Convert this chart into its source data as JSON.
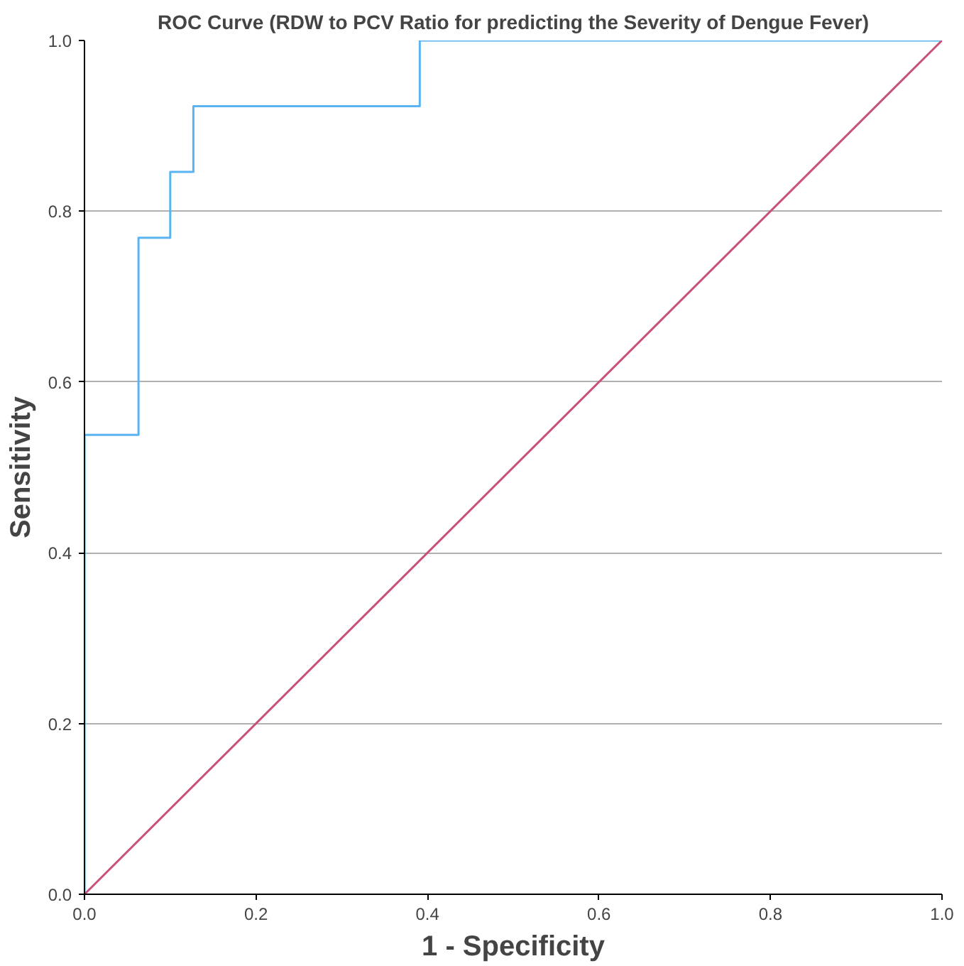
{
  "chart_data": {
    "type": "step",
    "title": "ROC Curve (RDW to PCV Ratio for predicting the Severity of Dengue Fever)",
    "xlabel": "1 - Specificity",
    "ylabel": "Sensitivity",
    "xlim": [
      0,
      1
    ],
    "ylim": [
      0,
      1
    ],
    "xticks": [
      {
        "value": 0,
        "label": "0.0"
      },
      {
        "value": 0.2,
        "label": "0.2"
      },
      {
        "value": 0.4,
        "label": "0.4"
      },
      {
        "value": 0.6,
        "label": "0.6"
      },
      {
        "value": 0.8,
        "label": "0.8"
      },
      {
        "value": 1,
        "label": "1.0"
      }
    ],
    "yticks": [
      {
        "value": 0,
        "label": "0.0"
      },
      {
        "value": 0.2,
        "label": "0.2"
      },
      {
        "value": 0.4,
        "label": "0.4"
      },
      {
        "value": 0.6,
        "label": "0.6"
      },
      {
        "value": 0.8,
        "label": "0.8"
      },
      {
        "value": 1,
        "label": "1.0"
      }
    ],
    "grid": "y",
    "series": [
      {
        "color": "#59b4f0",
        "x": [
          0,
          0,
          0.063,
          0.1,
          0.127,
          0.391,
          1
        ],
        "values": [
          0,
          0.538,
          0.769,
          0.846,
          0.923,
          1,
          1
        ]
      },
      {
        "type": "line",
        "color": "#c8507a",
        "x": [
          0,
          1
        ],
        "values": [
          0,
          1
        ]
      }
    ]
  }
}
